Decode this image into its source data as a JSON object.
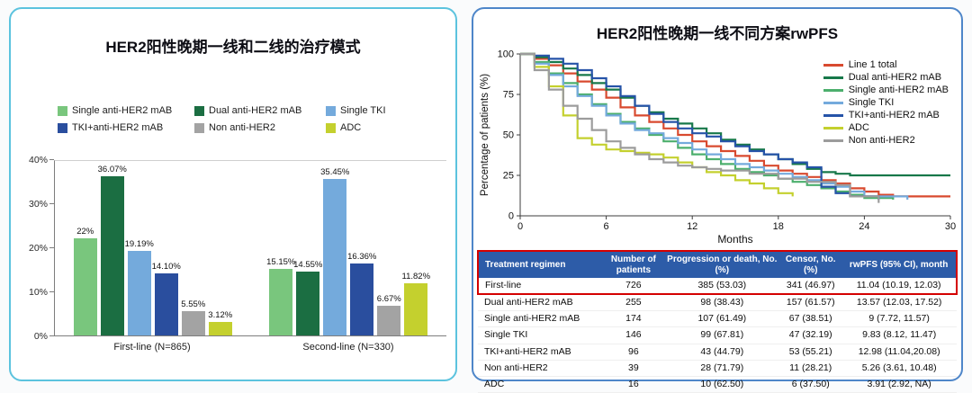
{
  "colors": {
    "left_panel_border": "#5cc3de",
    "right_panel_border": "#4e86c9",
    "table_header": "#2d5ca8",
    "highlight_border": "#d40000"
  },
  "chart_data": [
    {
      "type": "bar",
      "title": "HER2阳性晚期一线和二线的治疗模式",
      "categories": [
        "First-line (N=865)",
        "Second-line (N=330)"
      ],
      "ylim": [
        0,
        40
      ],
      "yticks": [
        "0%",
        "10%",
        "20%",
        "30%",
        "40%"
      ],
      "legend_position": "top",
      "series": [
        {
          "name": "Single anti-HER2 mAB",
          "color": "#79c67d",
          "values": [
            22,
            15.15
          ],
          "labels": [
            "22%",
            "15.15%"
          ]
        },
        {
          "name": "Dual anti-HER2 mAB",
          "color": "#1b6e42",
          "values": [
            36.07,
            14.55
          ],
          "labels": [
            "36.07%",
            "14.55%"
          ]
        },
        {
          "name": "Single TKI",
          "color": "#74aadc",
          "values": [
            19.19,
            35.45
          ],
          "labels": [
            "19.19%",
            "35.45%"
          ]
        },
        {
          "name": "TKI+anti-HER2 mAB",
          "color": "#2a4e9e",
          "values": [
            14.1,
            16.36
          ],
          "labels": [
            "14.10%",
            "16.36%"
          ]
        },
        {
          "name": "Non anti-HER2",
          "color": "#a3a3a3",
          "values": [
            5.55,
            6.67
          ],
          "labels": [
            "5.55%",
            "6.67%"
          ]
        },
        {
          "name": "ADC",
          "color": "#c4d02e",
          "values": [
            3.12,
            11.82
          ],
          "labels": [
            "3.12%",
            "11.82%"
          ]
        }
      ]
    },
    {
      "type": "line",
      "title": "HER2阳性晚期一线不同方案rwPFS",
      "xlabel": "Months",
      "ylabel": "Percentage of patients (%)",
      "xlim": [
        0,
        30
      ],
      "ylim": [
        0,
        100
      ],
      "xticks": [
        0,
        6,
        12,
        18,
        24,
        30
      ],
      "yticks": [
        0,
        25,
        50,
        75,
        100
      ],
      "step": true,
      "legend_position": "top-right",
      "series": [
        {
          "name": "Line 1 total",
          "color": "#d84a2f",
          "points": [
            [
              0,
              100
            ],
            [
              1,
              97
            ],
            [
              2,
              93
            ],
            [
              3,
              88
            ],
            [
              4,
              83
            ],
            [
              5,
              78
            ],
            [
              6,
              73
            ],
            [
              7,
              67
            ],
            [
              8,
              62
            ],
            [
              9,
              58
            ],
            [
              10,
              54
            ],
            [
              11,
              50
            ],
            [
              12,
              46
            ],
            [
              13,
              43
            ],
            [
              14,
              40
            ],
            [
              15,
              37
            ],
            [
              16,
              34
            ],
            [
              17,
              31
            ],
            [
              18,
              28
            ],
            [
              19,
              26
            ],
            [
              20,
              24
            ],
            [
              21,
              22
            ],
            [
              22,
              20
            ],
            [
              23,
              17
            ],
            [
              24,
              15
            ],
            [
              25,
              13
            ],
            [
              26,
              12
            ],
            [
              30,
              12
            ]
          ]
        },
        {
          "name": "Dual anti-HER2 mAB",
          "color": "#17784a",
          "points": [
            [
              0,
              100
            ],
            [
              1,
              98
            ],
            [
              2,
              95
            ],
            [
              3,
              91
            ],
            [
              4,
              87
            ],
            [
              5,
              82
            ],
            [
              6,
              78
            ],
            [
              7,
              73
            ],
            [
              8,
              68
            ],
            [
              9,
              64
            ],
            [
              10,
              60
            ],
            [
              11,
              57
            ],
            [
              12,
              54
            ],
            [
              13,
              51
            ],
            [
              14,
              47
            ],
            [
              15,
              44
            ],
            [
              16,
              41
            ],
            [
              17,
              38
            ],
            [
              18,
              35
            ],
            [
              19,
              32
            ],
            [
              20,
              29
            ],
            [
              21,
              27
            ],
            [
              22,
              26
            ],
            [
              23,
              25
            ],
            [
              30,
              25
            ]
          ]
        },
        {
          "name": "Single anti-HER2 mAB",
          "color": "#4caf6d",
          "points": [
            [
              0,
              100
            ],
            [
              1,
              95
            ],
            [
              2,
              88
            ],
            [
              3,
              82
            ],
            [
              4,
              75
            ],
            [
              5,
              69
            ],
            [
              6,
              63
            ],
            [
              7,
              58
            ],
            [
              8,
              54
            ],
            [
              9,
              50
            ],
            [
              10,
              46
            ],
            [
              11,
              42
            ],
            [
              12,
              38
            ],
            [
              13,
              35
            ],
            [
              14,
              32
            ],
            [
              15,
              29
            ],
            [
              16,
              27
            ],
            [
              17,
              25
            ],
            [
              18,
              23
            ],
            [
              19,
              21
            ],
            [
              20,
              19
            ],
            [
              21,
              17
            ],
            [
              22,
              15
            ],
            [
              23,
              13
            ],
            [
              24,
              11
            ],
            [
              26,
              10
            ]
          ]
        },
        {
          "name": "Single TKI",
          "color": "#74aadc",
          "points": [
            [
              0,
              100
            ],
            [
              1,
              94
            ],
            [
              2,
              87
            ],
            [
              3,
              80
            ],
            [
              4,
              74
            ],
            [
              5,
              68
            ],
            [
              6,
              62
            ],
            [
              7,
              57
            ],
            [
              8,
              53
            ],
            [
              9,
              51
            ],
            [
              10,
              48
            ],
            [
              11,
              45
            ],
            [
              12,
              41
            ],
            [
              13,
              38
            ],
            [
              14,
              35
            ],
            [
              15,
              32
            ],
            [
              16,
              30
            ],
            [
              17,
              28
            ],
            [
              18,
              26
            ],
            [
              19,
              24
            ],
            [
              20,
              22
            ],
            [
              21,
              20
            ],
            [
              22,
              18
            ],
            [
              23,
              15
            ],
            [
              24,
              12
            ],
            [
              27,
              10
            ]
          ]
        },
        {
          "name": "TKI+anti-HER2 mAB",
          "color": "#2653a8",
          "points": [
            [
              0,
              100
            ],
            [
              1,
              99
            ],
            [
              2,
              97
            ],
            [
              3,
              94
            ],
            [
              4,
              90
            ],
            [
              5,
              85
            ],
            [
              6,
              80
            ],
            [
              7,
              74
            ],
            [
              8,
              68
            ],
            [
              9,
              63
            ],
            [
              10,
              58
            ],
            [
              11,
              54
            ],
            [
              12,
              51
            ],
            [
              13,
              49
            ],
            [
              14,
              46
            ],
            [
              15,
              43
            ],
            [
              16,
              40
            ],
            [
              17,
              38
            ],
            [
              18,
              35
            ],
            [
              19,
              33
            ],
            [
              20,
              30
            ],
            [
              21,
              18
            ],
            [
              22,
              14
            ],
            [
              23,
              12
            ],
            [
              25,
              10
            ]
          ]
        },
        {
          "name": "ADC",
          "color": "#c4d02e",
          "points": [
            [
              0,
              100
            ],
            [
              1,
              92
            ],
            [
              2,
              80
            ],
            [
              3,
              62
            ],
            [
              4,
              48
            ],
            [
              5,
              44
            ],
            [
              6,
              41
            ],
            [
              7,
              40
            ],
            [
              8,
              39
            ],
            [
              9,
              38
            ],
            [
              10,
              36
            ],
            [
              11,
              33
            ],
            [
              12,
              30
            ],
            [
              13,
              27
            ],
            [
              14,
              25
            ],
            [
              15,
              22
            ],
            [
              16,
              20
            ],
            [
              17,
              17
            ],
            [
              18,
              14
            ],
            [
              19,
              12
            ]
          ]
        },
        {
          "name": "Non anti-HER2",
          "color": "#9c9c9c",
          "points": [
            [
              0,
              100
            ],
            [
              1,
              90
            ],
            [
              2,
              78
            ],
            [
              3,
              68
            ],
            [
              4,
              60
            ],
            [
              5,
              53
            ],
            [
              6,
              46
            ],
            [
              7,
              42
            ],
            [
              8,
              38
            ],
            [
              9,
              35
            ],
            [
              10,
              33
            ],
            [
              11,
              31
            ],
            [
              12,
              30
            ],
            [
              13,
              29
            ],
            [
              14,
              28
            ],
            [
              16,
              26
            ],
            [
              18,
              23
            ],
            [
              20,
              21
            ],
            [
              22,
              19
            ],
            [
              23,
              12
            ],
            [
              25,
              8
            ]
          ]
        }
      ]
    },
    {
      "type": "table",
      "headers": [
        "Treatment regimen",
        "Number of patients",
        "Progression or death, No. (%)",
        "Censor, No. (%)",
        "rwPFS (95% CI), month"
      ],
      "rows": [
        [
          "First-line",
          "726",
          "385 (53.03)",
          "341 (46.97)",
          "11.04 (10.19, 12.03)"
        ],
        [
          "Dual anti-HER2 mAB",
          "255",
          "98 (38.43)",
          "157 (61.57)",
          "13.57 (12.03, 17.52)"
        ],
        [
          "Single anti-HER2 mAB",
          "174",
          "107 (61.49)",
          "67 (38.51)",
          "9 (7.72, 11.57)"
        ],
        [
          "Single TKI",
          "146",
          "99 (67.81)",
          "47 (32.19)",
          "9.83 (8.12, 11.47)"
        ],
        [
          "TKI+anti-HER2 mAB",
          "96",
          "43 (44.79)",
          "53 (55.21)",
          "12.98 (11.04,20.08)"
        ],
        [
          "Non anti-HER2",
          "39",
          "28 (71.79)",
          "11 (28.21)",
          "5.26 (3.61, 10.48)"
        ],
        [
          "ADC",
          "16",
          "10 (62.50)",
          "6 (37.50)",
          "3.91 (2.92, NA)"
        ]
      ],
      "highlight_rows": [
        0
      ]
    }
  ]
}
